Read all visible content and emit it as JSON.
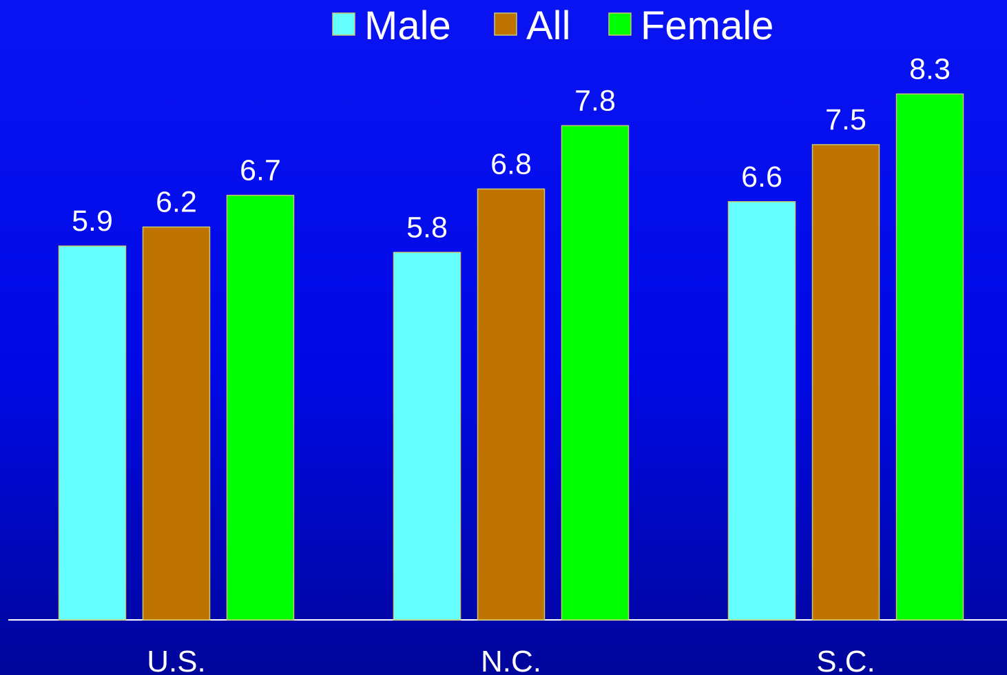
{
  "colors": {
    "background_top": "#0a14f2",
    "background_bottom": "#00069a",
    "axis": "#ffffff",
    "text": "#ffffff"
  },
  "chart_data": {
    "type": "bar",
    "title": "",
    "xlabel": "",
    "ylabel": "",
    "categories": [
      "U.S.",
      "N.C.",
      "S.C."
    ],
    "ylim": [
      0,
      9
    ],
    "grid": false,
    "legend_position": "top",
    "show_y_axis": false,
    "series": [
      {
        "name": "Male",
        "color": "#66ffff",
        "values": [
          5.9,
          5.8,
          6.6
        ],
        "labels": [
          "5.9",
          "5.8",
          "6.6"
        ]
      },
      {
        "name": "All",
        "color": "#bf7300",
        "values": [
          6.2,
          6.8,
          7.5
        ],
        "labels": [
          "6.2",
          "6.8",
          "7.5"
        ]
      },
      {
        "name": "Female",
        "color": "#00ff00",
        "values": [
          6.7,
          7.8,
          8.3
        ],
        "labels": [
          "6.7",
          "7.8",
          "8.3"
        ]
      }
    ]
  }
}
